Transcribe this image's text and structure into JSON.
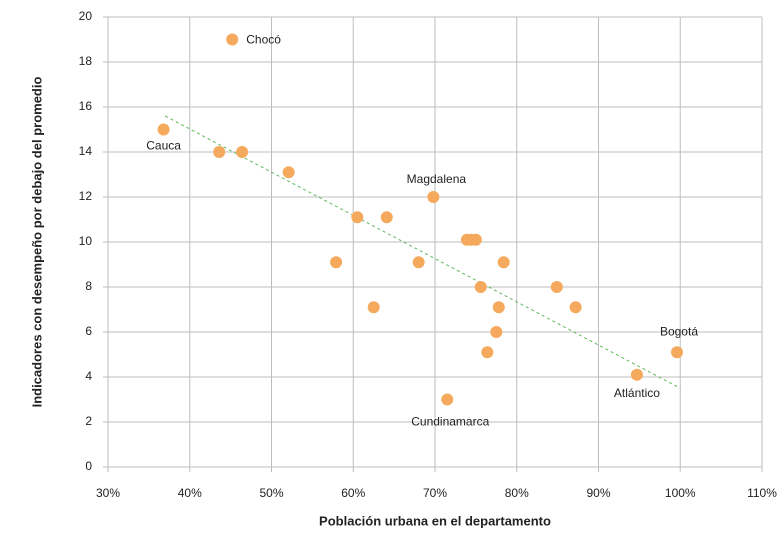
{
  "chart_data": {
    "type": "scatter",
    "x_label": "Población urbana en el departamento",
    "y_label": "Indicadores con desempeño por debajo del promedio",
    "color": "#f5a95c",
    "x": [
      45.2,
      36.8,
      43.6,
      46.4,
      52.1,
      69.8,
      60.5,
      64.1,
      57.9,
      68.0,
      73.9,
      74.4,
      75.0,
      78.4,
      75.6,
      84.9,
      77.8,
      87.2,
      62.5,
      77.5,
      76.4,
      99.6,
      94.7,
      71.5
    ],
    "values": [
      19.0,
      15.0,
      14.0,
      14.0,
      13.1,
      12.0,
      11.1,
      11.1,
      9.1,
      9.1,
      10.1,
      10.1,
      10.1,
      9.1,
      8.0,
      8.0,
      7.1,
      7.1,
      7.1,
      6.0,
      5.1,
      5.1,
      4.1,
      3.0
    ],
    "point_labels": [
      "Chocó",
      "Cauca",
      null,
      null,
      null,
      "Magdalena",
      null,
      null,
      null,
      null,
      null,
      null,
      null,
      null,
      null,
      null,
      null,
      null,
      null,
      null,
      null,
      "Bogotá",
      "Atlántico",
      "Cundinamarca"
    ],
    "trendline": {
      "x": [
        37,
        100
      ],
      "y": [
        15.6,
        3.5
      ],
      "color": "#5cb85c"
    },
    "xlim": [
      30,
      110
    ],
    "ylim": [
      0,
      20
    ],
    "xticks": [
      {
        "value": 30,
        "label": "30%"
      },
      {
        "value": 40,
        "label": "40%"
      },
      {
        "value": 50,
        "label": "50%"
      },
      {
        "value": 60,
        "label": "60%"
      },
      {
        "value": 70,
        "label": "70%"
      },
      {
        "value": 80,
        "label": "80%"
      },
      {
        "value": 90,
        "label": "90%"
      },
      {
        "value": 100,
        "label": "100%"
      },
      {
        "value": 110,
        "label": "110%"
      }
    ],
    "yticks": [
      0,
      2,
      4,
      6,
      8,
      10,
      12,
      14,
      16,
      18,
      20
    ],
    "grid": true
  }
}
